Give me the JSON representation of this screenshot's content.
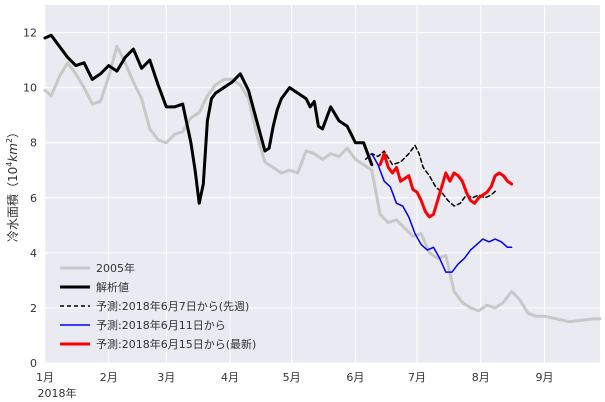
{
  "chart_data": {
    "type": "line",
    "title": "",
    "ylabel": "冷水面積（10⁴km²）",
    "ylabel_parts": {
      "prefix": "冷水面積（10",
      "exp": "4",
      "unit": "km",
      "unit_exp": "2",
      "suffix": "）"
    },
    "xlabel": "",
    "year_label": "2018年",
    "x_unit": "day_of_year",
    "xlim": [
      1,
      271
    ],
    "ylim": [
      0,
      13
    ],
    "yticks": [
      0,
      2,
      4,
      6,
      8,
      10,
      12
    ],
    "xticks": [
      {
        "day": 1,
        "label": "1月"
      },
      {
        "day": 32,
        "label": "2月"
      },
      {
        "day": 60,
        "label": "3月"
      },
      {
        "day": 91,
        "label": "4月"
      },
      {
        "day": 121,
        "label": "5月"
      },
      {
        "day": 152,
        "label": "6月"
      },
      {
        "day": 182,
        "label": "7月"
      },
      {
        "day": 213,
        "label": "8月"
      },
      {
        "day": 244,
        "label": "9月"
      }
    ],
    "grid": true,
    "legend_position": "lower-left",
    "series": [
      {
        "name": "2005年",
        "color": "#c8c8c8",
        "dash": "",
        "width": 3,
        "x": [
          1,
          4,
          8,
          12,
          16,
          20,
          24,
          28,
          32,
          36,
          40,
          44,
          48,
          52,
          56,
          60,
          64,
          68,
          72,
          76,
          80,
          84,
          88,
          92,
          96,
          100,
          104,
          108,
          112,
          116,
          120,
          124,
          128,
          132,
          136,
          140,
          144,
          148,
          152,
          156,
          160,
          164,
          168,
          172,
          176,
          180,
          184,
          188,
          192,
          196,
          200,
          204,
          208,
          212,
          216,
          220,
          224,
          228,
          232,
          236,
          240,
          244,
          250,
          256,
          262,
          268,
          271
        ],
        "y": [
          9.9,
          9.7,
          10.4,
          10.9,
          10.5,
          10.0,
          9.4,
          9.5,
          10.4,
          11.5,
          10.9,
          10.2,
          9.6,
          8.5,
          8.1,
          8.0,
          8.3,
          8.4,
          8.9,
          9.1,
          9.7,
          10.1,
          10.3,
          10.3,
          10.1,
          9.6,
          8.3,
          7.3,
          7.1,
          6.9,
          7.0,
          6.9,
          7.7,
          7.6,
          7.4,
          7.6,
          7.5,
          7.8,
          7.4,
          7.2,
          7.0,
          5.4,
          5.1,
          5.2,
          4.9,
          4.6,
          4.7,
          4.0,
          3.8,
          3.9,
          2.6,
          2.2,
          2.0,
          1.9,
          2.1,
          2.0,
          2.2,
          2.6,
          2.3,
          1.8,
          1.7,
          1.7,
          1.6,
          1.5,
          1.55,
          1.6,
          1.6
        ]
      },
      {
        "name": "解析値",
        "color": "#000000",
        "dash": "",
        "width": 3,
        "x": [
          1,
          4,
          8,
          12,
          16,
          20,
          24,
          28,
          32,
          36,
          40,
          44,
          48,
          52,
          56,
          60,
          64,
          68,
          72,
          74,
          76,
          78,
          80,
          82,
          84,
          86,
          88,
          92,
          96,
          100,
          104,
          108,
          110,
          112,
          114,
          116,
          120,
          124,
          128,
          130,
          132,
          134,
          136,
          140,
          144,
          148,
          152,
          156,
          160
        ],
        "y": [
          11.8,
          11.9,
          11.5,
          11.1,
          10.8,
          10.9,
          10.3,
          10.5,
          10.8,
          10.6,
          11.1,
          11.4,
          10.7,
          11.0,
          10.1,
          9.3,
          9.3,
          9.4,
          8.0,
          7.0,
          5.8,
          6.5,
          8.8,
          9.6,
          9.8,
          9.9,
          10.0,
          10.2,
          10.5,
          9.9,
          8.8,
          7.7,
          7.8,
          8.6,
          9.2,
          9.6,
          10.0,
          9.8,
          9.6,
          9.3,
          9.5,
          8.6,
          8.5,
          9.3,
          8.8,
          8.6,
          8.0,
          8.0,
          7.2
        ]
      },
      {
        "name": "予測:2018年6月7日から(先週)",
        "color": "#000000",
        "dash": "4,3",
        "width": 1.5,
        "x": [
          157,
          160,
          163,
          166,
          170,
          174,
          178,
          181,
          183,
          185,
          188,
          191,
          194,
          197,
          200,
          203,
          206,
          209,
          212,
          215,
          218,
          221
        ],
        "y": [
          7.4,
          7.6,
          7.5,
          7.7,
          7.2,
          7.3,
          7.6,
          7.9,
          7.6,
          7.1,
          6.8,
          6.4,
          6.2,
          5.9,
          5.7,
          5.8,
          6.1,
          6.0,
          6.1,
          6.0,
          6.1,
          6.3
        ]
      },
      {
        "name": "予測:2018年6月11日から",
        "color": "#0000ff",
        "dash": "",
        "width": 1.5,
        "x": [
          160,
          163,
          166,
          169,
          172,
          175,
          178,
          181,
          184,
          187,
          190,
          193,
          196,
          199,
          202,
          205,
          208,
          211,
          214,
          217,
          220,
          223,
          226,
          228
        ],
        "y": [
          7.6,
          7.2,
          6.6,
          6.4,
          5.8,
          5.7,
          5.3,
          4.7,
          4.3,
          4.1,
          4.2,
          3.8,
          3.3,
          3.3,
          3.6,
          3.8,
          4.1,
          4.3,
          4.5,
          4.4,
          4.5,
          4.4,
          4.2,
          4.2
        ]
      },
      {
        "name": "予測:2018年6月15日から(最新)",
        "color": "#ff0000",
        "dash": "",
        "width": 3,
        "x": [
          164,
          166,
          168,
          170,
          172,
          174,
          176,
          178,
          180,
          182,
          184,
          186,
          188,
          190,
          192,
          194,
          196,
          198,
          200,
          202,
          204,
          206,
          208,
          210,
          212,
          214,
          216,
          218,
          220,
          222,
          224,
          226,
          228
        ],
        "y": [
          7.2,
          7.6,
          7.1,
          6.9,
          7.1,
          6.6,
          6.7,
          6.8,
          6.3,
          6.2,
          5.9,
          5.5,
          5.3,
          5.4,
          5.9,
          6.4,
          6.9,
          6.6,
          6.9,
          6.8,
          6.6,
          6.2,
          5.9,
          5.8,
          6.0,
          6.1,
          6.2,
          6.4,
          6.8,
          6.9,
          6.8,
          6.6,
          6.5
        ]
      }
    ]
  }
}
